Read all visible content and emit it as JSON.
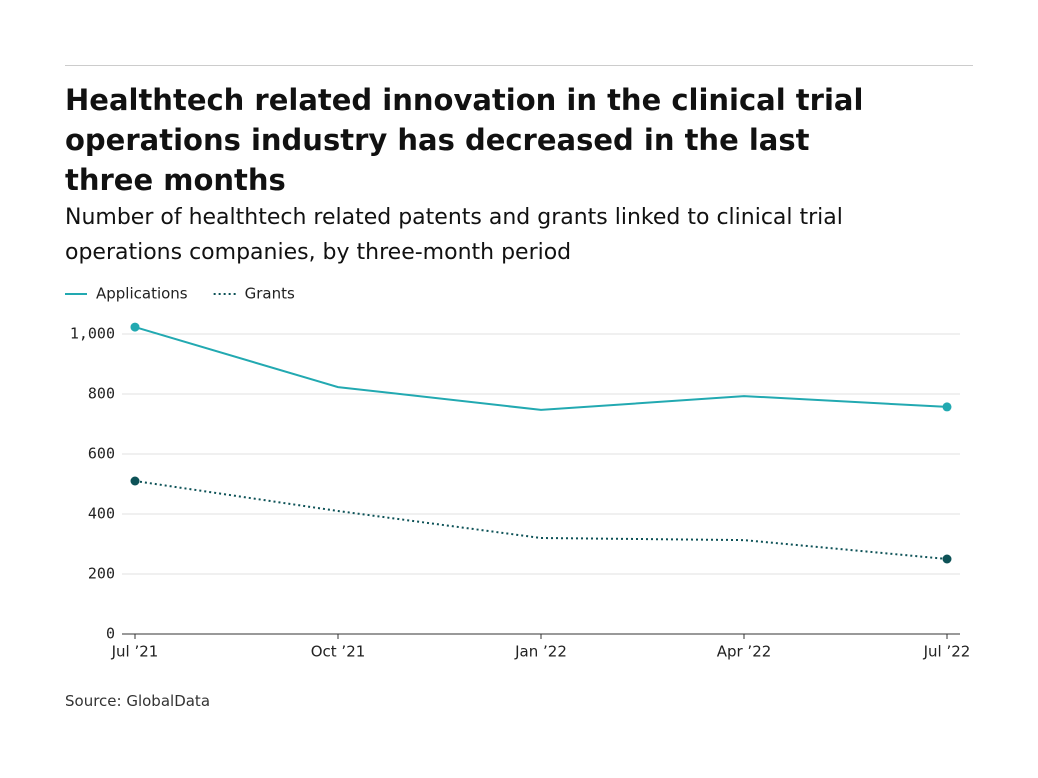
{
  "chart_data": {
    "type": "line",
    "title": "Healthtech related innovation in the clinical trial operations industry has decreased in the last three months",
    "subtitle": "Number of healthtech related patents and grants linked to clinical trial operations companies, by three-month period",
    "source": "Source: GlobalData",
    "categories": [
      "Jul ’21",
      "Oct ’21",
      "Jan ’22",
      "Apr ’22",
      "Jul ’22"
    ],
    "series": [
      {
        "name": "Applications",
        "color": "#22a9b1",
        "dash": "solid",
        "values": [
          1023,
          823,
          747,
          793,
          757
        ]
      },
      {
        "name": "Grants",
        "color": "#0d5257",
        "dash": "dotted",
        "values": [
          510,
          410,
          320,
          313,
          250
        ]
      }
    ],
    "ylim": [
      0,
      1000
    ],
    "yticks": [
      0,
      200,
      400,
      600,
      800,
      {
        "value": 1000,
        "label": "1,000"
      }
    ],
    "grid": true
  }
}
